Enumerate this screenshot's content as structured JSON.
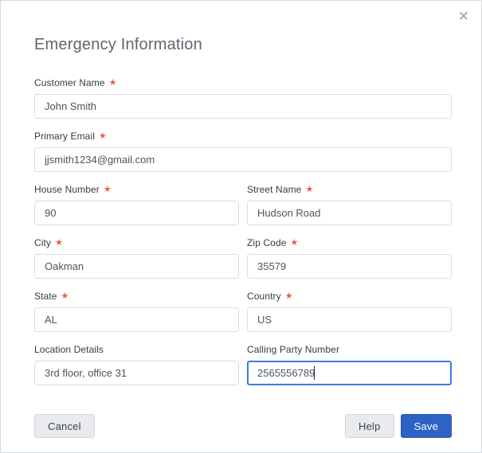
{
  "dialog": {
    "title": "Emergency Information"
  },
  "icons": {
    "close": "✕"
  },
  "ui": {
    "required_marker": "★"
  },
  "fields": {
    "customer_name": {
      "label": "Customer Name",
      "required": true,
      "value": "John Smith"
    },
    "primary_email": {
      "label": "Primary Email",
      "required": true,
      "value": "jjsmith1234@gmail.com"
    },
    "house_number": {
      "label": "House Number",
      "required": true,
      "value": "90"
    },
    "street_name": {
      "label": "Street Name",
      "required": true,
      "value": "Hudson Road"
    },
    "city": {
      "label": "City",
      "required": true,
      "value": "Oakman"
    },
    "zip_code": {
      "label": "Zip Code",
      "required": true,
      "value": "35579"
    },
    "state": {
      "label": "State",
      "required": true,
      "value": "AL"
    },
    "country": {
      "label": "Country",
      "required": true,
      "value": "US"
    },
    "location_details": {
      "label": "Location Details",
      "required": false,
      "value": "3rd floor, office 31"
    },
    "calling_party_number": {
      "label": "Calling Party Number",
      "required": false,
      "value": "2565556789",
      "focused": true
    }
  },
  "buttons": {
    "cancel": "Cancel",
    "help": "Help",
    "save": "Save"
  },
  "colors": {
    "primary_button": "#2d63c5",
    "required_star": "#ea5d52",
    "focus_border": "#4179e1",
    "dialog_border": "#d5dade"
  }
}
